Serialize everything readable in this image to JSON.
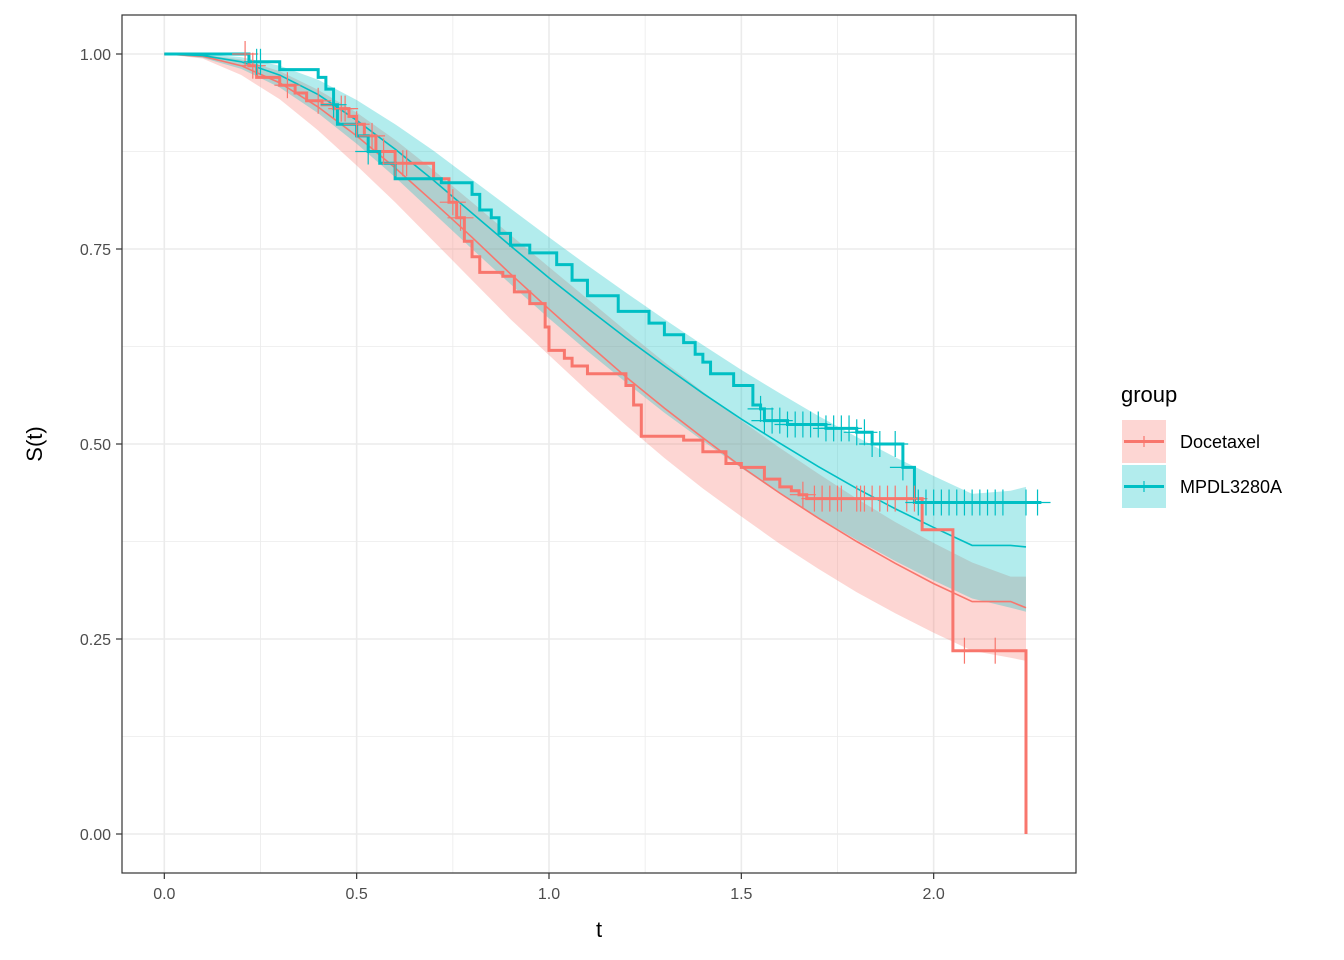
{
  "chart_data": {
    "type": "line",
    "subtype": "kaplan-meier-with-parametric-fit",
    "xlabel": "t",
    "ylabel": "S(t)",
    "xlim": [
      -0.11,
      2.37
    ],
    "ylim": [
      -0.05,
      1.05
    ],
    "x_ticks": [
      0.0,
      0.5,
      1.0,
      1.5,
      2.0
    ],
    "x_tick_labels": [
      "0.0",
      "0.5",
      "1.0",
      "1.5",
      "2.0"
    ],
    "y_ticks": [
      0.0,
      0.25,
      0.5,
      0.75,
      1.0
    ],
    "y_tick_labels": [
      "0.00",
      "0.25",
      "0.50",
      "0.75",
      "1.00"
    ],
    "grid": true,
    "legend": {
      "title": "group",
      "position": "right"
    },
    "series": [
      {
        "name": "Docetaxel",
        "color": "#F8766D",
        "fill_color": "#F8766D",
        "km_steps": [
          [
            0.0,
            1.0
          ],
          [
            0.22,
            1.0
          ],
          [
            0.22,
            0.985
          ],
          [
            0.24,
            0.97
          ],
          [
            0.3,
            0.96
          ],
          [
            0.34,
            0.95
          ],
          [
            0.37,
            0.94
          ],
          [
            0.41,
            0.935
          ],
          [
            0.44,
            0.93
          ],
          [
            0.48,
            0.92
          ],
          [
            0.5,
            0.91
          ],
          [
            0.52,
            0.895
          ],
          [
            0.55,
            0.875
          ],
          [
            0.6,
            0.86
          ],
          [
            0.7,
            0.84
          ],
          [
            0.74,
            0.81
          ],
          [
            0.76,
            0.79
          ],
          [
            0.78,
            0.76
          ],
          [
            0.8,
            0.74
          ],
          [
            0.82,
            0.72
          ],
          [
            0.88,
            0.715
          ],
          [
            0.91,
            0.695
          ],
          [
            0.95,
            0.68
          ],
          [
            0.99,
            0.65
          ],
          [
            1.0,
            0.62
          ],
          [
            1.04,
            0.61
          ],
          [
            1.06,
            0.6
          ],
          [
            1.1,
            0.59
          ],
          [
            1.2,
            0.575
          ],
          [
            1.22,
            0.55
          ],
          [
            1.23,
            0.55
          ],
          [
            1.24,
            0.51
          ],
          [
            1.3,
            0.51
          ],
          [
            1.35,
            0.505
          ],
          [
            1.4,
            0.49
          ],
          [
            1.46,
            0.475
          ],
          [
            1.5,
            0.47
          ],
          [
            1.56,
            0.455
          ],
          [
            1.6,
            0.445
          ],
          [
            1.63,
            0.44
          ],
          [
            1.65,
            0.435
          ],
          [
            1.67,
            0.43
          ],
          [
            1.72,
            0.43
          ],
          [
            1.97,
            0.42
          ],
          [
            1.97,
            0.39
          ],
          [
            2.05,
            0.39
          ],
          [
            2.05,
            0.235
          ],
          [
            2.24,
            0.235
          ],
          [
            2.24,
            0.0
          ]
        ],
        "km_censor_times": [
          0.21,
          0.23,
          0.32,
          0.4,
          0.46,
          0.47,
          0.5,
          0.54,
          0.57,
          0.6,
          0.62,
          0.63,
          0.75,
          0.77,
          1.66,
          1.69,
          1.71,
          1.73,
          1.75,
          1.76,
          1.8,
          1.81,
          1.82,
          1.84,
          1.86,
          1.88,
          1.9,
          1.93,
          1.95,
          2.08,
          2.16
        ],
        "fit_times": [
          0.0,
          0.1,
          0.2,
          0.3,
          0.4,
          0.5,
          0.6,
          0.7,
          0.8,
          0.9,
          1.0,
          1.1,
          1.2,
          1.3,
          1.4,
          1.5,
          1.6,
          1.7,
          1.8,
          1.9,
          2.0,
          2.1,
          2.2,
          2.24
        ],
        "fit_survival": [
          1.0,
          0.997,
          0.985,
          0.963,
          0.932,
          0.895,
          0.854,
          0.81,
          0.765,
          0.718,
          0.673,
          0.629,
          0.586,
          0.546,
          0.508,
          0.471,
          0.437,
          0.405,
          0.375,
          0.347,
          0.321,
          0.298,
          0.298,
          0.29
        ],
        "ci_lower": [
          1.0,
          0.994,
          0.973,
          0.942,
          0.902,
          0.857,
          0.81,
          0.76,
          0.71,
          0.66,
          0.614,
          0.568,
          0.524,
          0.482,
          0.443,
          0.407,
          0.372,
          0.34,
          0.31,
          0.283,
          0.258,
          0.235,
          0.226,
          0.222
        ],
        "ci_upper": [
          1.0,
          0.999,
          0.993,
          0.978,
          0.954,
          0.925,
          0.89,
          0.851,
          0.81,
          0.768,
          0.727,
          0.686,
          0.645,
          0.605,
          0.567,
          0.53,
          0.495,
          0.462,
          0.43,
          0.4,
          0.373,
          0.348,
          0.33,
          0.33
        ]
      },
      {
        "name": "MPDL3280A",
        "color": "#00BFC4",
        "fill_color": "#00BFC4",
        "km_steps": [
          [
            0.0,
            1.0
          ],
          [
            0.22,
            1.0
          ],
          [
            0.22,
            0.99
          ],
          [
            0.3,
            0.99
          ],
          [
            0.3,
            0.98
          ],
          [
            0.4,
            0.97
          ],
          [
            0.42,
            0.955
          ],
          [
            0.44,
            0.935
          ],
          [
            0.45,
            0.91
          ],
          [
            0.5,
            0.895
          ],
          [
            0.53,
            0.875
          ],
          [
            0.56,
            0.86
          ],
          [
            0.6,
            0.84
          ],
          [
            0.72,
            0.84
          ],
          [
            0.72,
            0.835
          ],
          [
            0.8,
            0.835
          ],
          [
            0.8,
            0.82
          ],
          [
            0.82,
            0.8
          ],
          [
            0.85,
            0.79
          ],
          [
            0.87,
            0.77
          ],
          [
            0.9,
            0.755
          ],
          [
            0.95,
            0.745
          ],
          [
            1.02,
            0.73
          ],
          [
            1.06,
            0.73
          ],
          [
            1.06,
            0.71
          ],
          [
            1.1,
            0.69
          ],
          [
            1.18,
            0.67
          ],
          [
            1.26,
            0.655
          ],
          [
            1.3,
            0.64
          ],
          [
            1.35,
            0.63
          ],
          [
            1.38,
            0.615
          ],
          [
            1.4,
            0.605
          ],
          [
            1.42,
            0.59
          ],
          [
            1.48,
            0.575
          ],
          [
            1.53,
            0.55
          ],
          [
            1.55,
            0.545
          ],
          [
            1.56,
            0.53
          ],
          [
            1.62,
            0.525
          ],
          [
            1.72,
            0.52
          ],
          [
            1.8,
            0.515
          ],
          [
            1.84,
            0.5
          ],
          [
            1.92,
            0.49
          ],
          [
            1.92,
            0.47
          ],
          [
            1.95,
            0.47
          ],
          [
            1.95,
            0.425
          ],
          [
            2.28,
            0.425
          ]
        ],
        "km_censor_times": [
          0.24,
          0.25,
          0.44,
          0.53,
          1.55,
          1.56,
          1.58,
          1.6,
          1.62,
          1.64,
          1.66,
          1.68,
          1.7,
          1.72,
          1.74,
          1.76,
          1.78,
          1.8,
          1.82,
          1.84,
          1.86,
          1.9,
          1.92,
          1.96,
          1.98,
          2.0,
          2.02,
          2.04,
          2.06,
          2.08,
          2.1,
          2.12,
          2.14,
          2.16,
          2.18,
          2.24,
          2.27
        ],
        "fit_times": [
          0.0,
          0.1,
          0.2,
          0.3,
          0.4,
          0.5,
          0.6,
          0.7,
          0.8,
          0.9,
          1.0,
          1.1,
          1.2,
          1.3,
          1.4,
          1.5,
          1.6,
          1.7,
          1.8,
          1.9,
          2.0,
          2.1,
          2.2,
          2.24
        ],
        "fit_survival": [
          1.0,
          0.998,
          0.99,
          0.973,
          0.948,
          0.915,
          0.878,
          0.838,
          0.796,
          0.754,
          0.713,
          0.674,
          0.636,
          0.6,
          0.565,
          0.532,
          0.501,
          0.471,
          0.443,
          0.417,
          0.393,
          0.37,
          0.37,
          0.368
        ],
        "ci_lower": [
          1.0,
          0.995,
          0.981,
          0.957,
          0.924,
          0.885,
          0.842,
          0.796,
          0.75,
          0.705,
          0.661,
          0.619,
          0.579,
          0.54,
          0.504,
          0.469,
          0.436,
          0.406,
          0.377,
          0.35,
          0.325,
          0.302,
          0.29,
          0.285
        ],
        "ci_upper": [
          1.0,
          1.0,
          0.996,
          0.985,
          0.967,
          0.941,
          0.91,
          0.876,
          0.839,
          0.802,
          0.765,
          0.729,
          0.694,
          0.66,
          0.627,
          0.595,
          0.565,
          0.536,
          0.509,
          0.483,
          0.459,
          0.436,
          0.44,
          0.445
        ]
      }
    ]
  }
}
